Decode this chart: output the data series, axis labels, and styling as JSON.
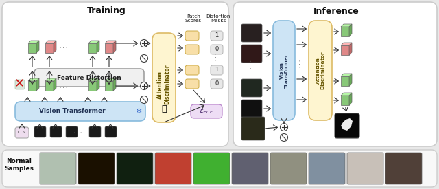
{
  "title_training": "Training",
  "title_inference": "Inference",
  "title_normal": "Normal\nSamples",
  "outer_bg": "#e8e8e8",
  "panel_fill": "#ffffff",
  "panel_edge": "#cccccc",
  "vit_fill": "#cde4f5",
  "vit_edge": "#88bbdd",
  "feat_fill": "#f0f0f0",
  "feat_edge": "#aaaaaa",
  "attn_fill": "#fef5d0",
  "attn_edge": "#ddbb66",
  "loss_fill": "#eeddf5",
  "loss_edge": "#bb88cc",
  "green_face": "#88c878",
  "red_face": "#e08888",
  "patch_fill": "#f8dfa8",
  "mask_fill": "#e8e8e8",
  "mask_edge": "#aaaaaa",
  "bottom_fill": "#f8f8f8",
  "bottom_edge": "#cccccc"
}
